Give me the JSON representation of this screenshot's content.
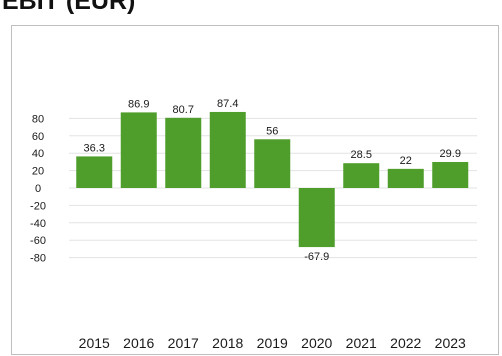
{
  "page": {
    "heading": "EBIT (EUR)"
  },
  "colors": {
    "bar": "#4f9d2a",
    "gridline": "#e3e3e3",
    "axis_text": "#1a1a1a",
    "frame_border": "#bfbfbf"
  },
  "chart_data": {
    "type": "bar",
    "title": "",
    "xlabel": "",
    "ylabel": "",
    "categories": [
      "2015",
      "2016",
      "2017",
      "2018",
      "2019",
      "2020",
      "2021",
      "2022",
      "2023"
    ],
    "values": [
      36.3,
      86.9,
      80.7,
      87.4,
      56,
      -67.9,
      28.5,
      22,
      29.9
    ],
    "value_labels": [
      "36.3",
      "86.9",
      "80.7",
      "87.4",
      "56",
      "-67.9",
      "28.5",
      "22",
      "29.9"
    ],
    "y_ticks": [
      80,
      60,
      40,
      20,
      0,
      -20,
      -40,
      -60,
      -80
    ],
    "ylim": [
      -80,
      80
    ],
    "grid": true,
    "legend": "none"
  }
}
